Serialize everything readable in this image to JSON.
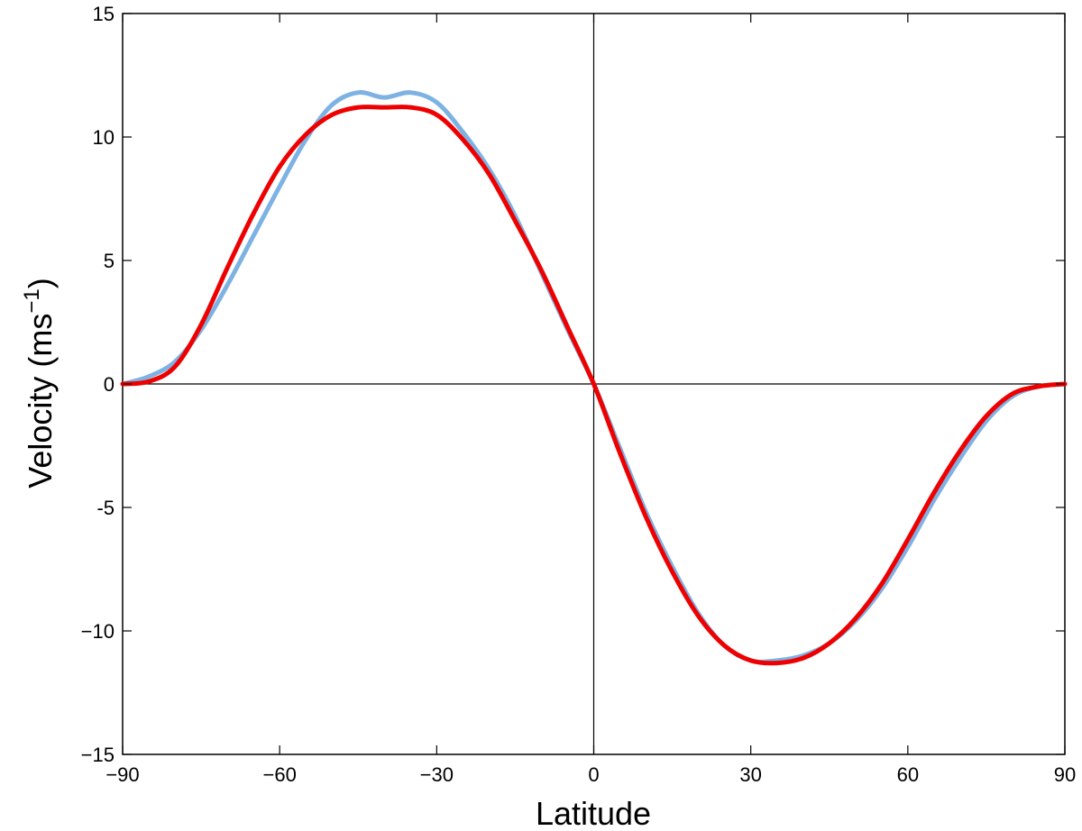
{
  "chart_data": {
    "type": "line",
    "title": "",
    "xlabel": "Latitude",
    "ylabel": {
      "prefix": "Velocity (ms",
      "superscript": "−1",
      "suffix": ")"
    },
    "xlim": [
      -90,
      90
    ],
    "ylim": [
      -15,
      15
    ],
    "x_ticks": [
      -90,
      -60,
      -30,
      0,
      30,
      60,
      90
    ],
    "y_ticks": [
      -15,
      -10,
      -5,
      0,
      5,
      10,
      15
    ],
    "x_tick_labels": [
      "−90",
      "−60",
      "−30",
      "0",
      "30",
      "60",
      "90"
    ],
    "y_tick_labels": [
      "−15",
      "−10",
      "-5",
      "0",
      "5",
      "10",
      "15"
    ],
    "grid": false,
    "zero_lines": true,
    "legend": "none",
    "x": [
      -90,
      -85,
      -80,
      -75,
      -70,
      -65,
      -60,
      -55,
      -50,
      -45,
      -40,
      -35,
      -30,
      -25,
      -20,
      -15,
      -10,
      -5,
      0,
      5,
      10,
      15,
      20,
      25,
      30,
      35,
      40,
      45,
      50,
      55,
      60,
      65,
      70,
      75,
      80,
      85,
      90
    ],
    "series": [
      {
        "color": "#7db2e3",
        "values": [
          0,
          0.3,
          0.9,
          2.2,
          4.0,
          6.0,
          8.0,
          9.9,
          11.3,
          11.8,
          11.6,
          11.8,
          11.4,
          10.2,
          8.7,
          6.8,
          4.5,
          2.2,
          0,
          -2.6,
          -5.2,
          -7.4,
          -9.3,
          -10.6,
          -11.2,
          -11.2,
          -11.0,
          -10.5,
          -9.6,
          -8.3,
          -6.6,
          -4.7,
          -3.0,
          -1.5,
          -0.5,
          -0.1,
          0
        ]
      },
      {
        "color": "#ee0000",
        "values": [
          0,
          0.1,
          0.7,
          2.4,
          4.7,
          6.9,
          8.8,
          10.1,
          10.9,
          11.2,
          11.2,
          11.2,
          10.9,
          9.9,
          8.5,
          6.6,
          4.6,
          2.3,
          0,
          -2.8,
          -5.4,
          -7.6,
          -9.4,
          -10.6,
          -11.2,
          -11.3,
          -11.1,
          -10.5,
          -9.5,
          -8.1,
          -6.3,
          -4.4,
          -2.7,
          -1.3,
          -0.4,
          -0.1,
          0
        ]
      }
    ]
  }
}
